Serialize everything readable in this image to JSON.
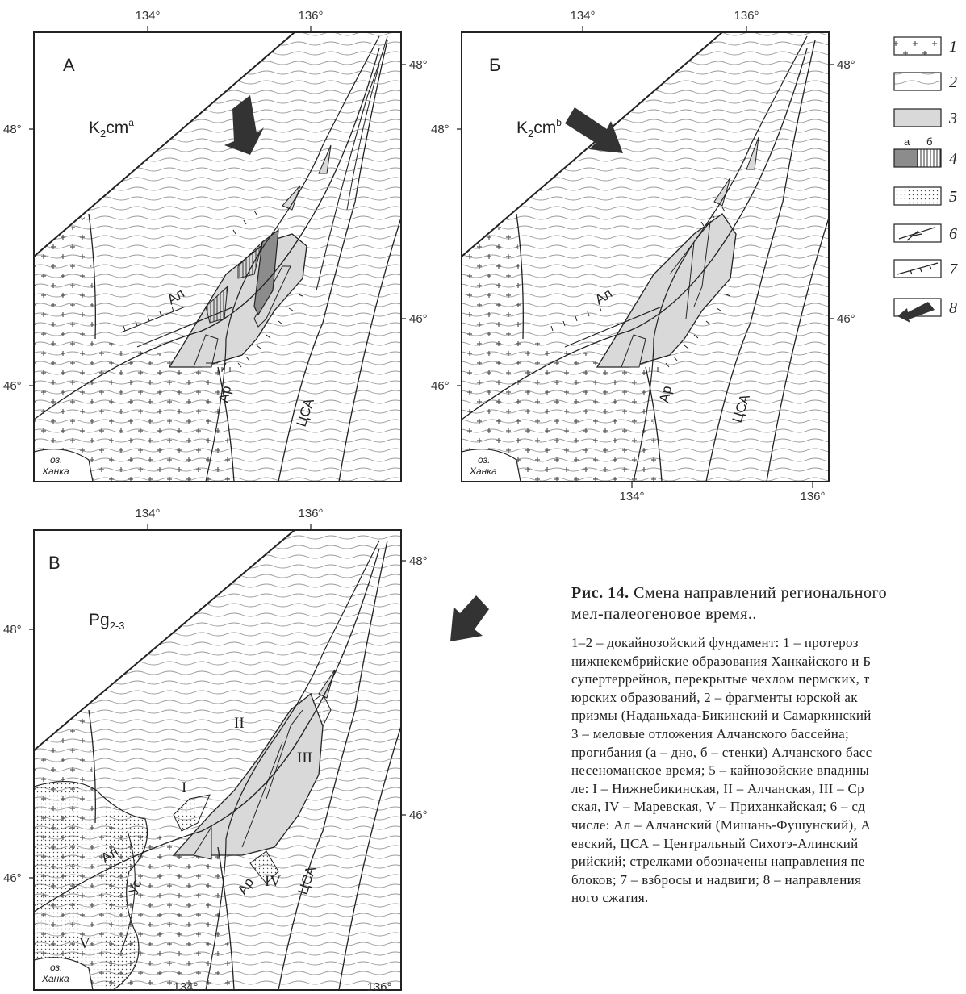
{
  "figure": {
    "panels": [
      {
        "letter": "А",
        "age_base": "K",
        "age_sub": "2",
        "age_rest": "cm",
        "age_sup": "a",
        "top_lon": [
          "134°",
          "136°"
        ],
        "bottom_lon": [],
        "left_lat": [
          "48°",
          "46°"
        ],
        "right_lat": [
          "48°",
          "46°"
        ],
        "faults": [
          "Ал",
          "Ар",
          "ЦСА"
        ],
        "basins": [],
        "lake": [
          "оз.",
          "Ханка"
        ]
      },
      {
        "letter": "Б",
        "age_base": "K",
        "age_sub": "2",
        "age_rest": "cm",
        "age_sup": "b",
        "top_lon": [
          "134°",
          "136°"
        ],
        "bottom_lon": [
          "134°",
          "136°"
        ],
        "left_lat": [
          "48°",
          "46°"
        ],
        "right_lat": [
          "48°",
          "46°"
        ],
        "faults": [
          "Ал",
          "Ар",
          "ЦСА"
        ],
        "basins": [],
        "lake": [
          "оз.",
          "Ханка"
        ]
      },
      {
        "letter": "В",
        "age_base": "Pg",
        "age_sub": "2-3",
        "age_rest": "",
        "age_sup": "",
        "top_lon": [
          "134°",
          "136°"
        ],
        "bottom_lon": [
          "134°",
          "136°"
        ],
        "left_lat": [
          "48°",
          "46°"
        ],
        "right_lat": [
          "48°",
          "46°"
        ],
        "faults": [
          "Ал",
          "Ус",
          "Ар",
          "ЦСА"
        ],
        "basins": [
          "I",
          "II",
          "III",
          "IV",
          "V"
        ],
        "lake": [
          "оз.",
          "Ханка"
        ]
      }
    ],
    "legend": {
      "items": [
        "1",
        "2",
        "3",
        "4",
        "5",
        "6",
        "7",
        "8"
      ],
      "sub_a": "а",
      "sub_b": "б"
    },
    "colors": {
      "cretaceous": "#d9d9d9",
      "dno": "#8c8c8c",
      "outline": "#222222",
      "wave": "#9a9a9a",
      "cross": "#555555"
    },
    "caption": {
      "title_bold": "Рис. 14.",
      "title_rest": " Смена направлений регионального",
      "title_line2": "мел-палеогеновое время..",
      "lines": [
        "1–2 – докайнозойский фундамент: 1 – протероз",
        "нижнекембрийские образования Ханкайского и Б",
        "супертеррейнов, перекрытые чехлом пермских, т",
        "юрских образований, 2 – фрагменты юрской ак",
        "призмы (Наданьхада-Бикинский и Самаркинский",
        "3 – меловые отложения Алчанского бассейна;",
        "прогибания (а – дно, б – стенки) Алчанского басс",
        "несеноманское время; 5 – кайнозойские впадины",
        "ле: I – Нижнебикинская, II – Алчанская, III – Ср",
        "ская,  IV – Маревская, V – Приханкайская; 6 – сд",
        "числе: Ал – Алчанский (Мишань-Фушунский), А",
        "евский, ЦСА – Центральный Сихотэ-Алинский",
        "рийский; стрелками обозначены направления пе",
        "блоков; 7 – взбросы и надвиги; 8 – направления",
        "ного сжатия."
      ]
    }
  }
}
